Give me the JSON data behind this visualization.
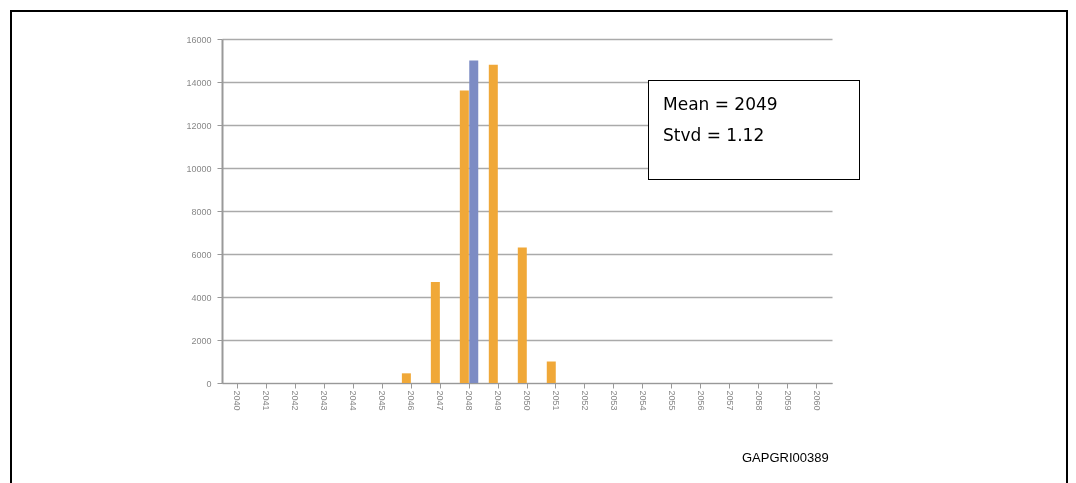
{
  "chart_data": {
    "type": "bar",
    "categories": [
      "2040",
      "2041",
      "2042",
      "2043",
      "2044",
      "2045",
      "2046",
      "2047",
      "2048",
      "2049",
      "2050",
      "2051",
      "2052",
      "2053",
      "2054",
      "2055",
      "2056",
      "2057",
      "2058",
      "2059",
      "2060"
    ],
    "series": [
      {
        "color": "#f0a838",
        "values": [
          0,
          0,
          0,
          0,
          0,
          0,
          450,
          4700,
          13600,
          14800,
          6300,
          1000,
          0,
          0,
          0,
          0,
          0,
          0,
          0,
          0,
          0
        ]
      },
      {
        "color": "#7d8cc4",
        "values": [
          null,
          null,
          null,
          null,
          null,
          null,
          null,
          null,
          15000,
          null,
          null,
          null,
          null,
          null,
          null,
          null,
          null,
          null,
          null,
          null,
          null
        ]
      }
    ],
    "ylim": [
      0,
      16000
    ],
    "yticks": [
      0,
      2000,
      4000,
      6000,
      8000,
      10000,
      12000,
      14000,
      16000
    ],
    "grid": "y",
    "annotations": [
      "Mean = 2049",
      "Stvd = 1.12",
      "GAPGRI00389"
    ]
  }
}
